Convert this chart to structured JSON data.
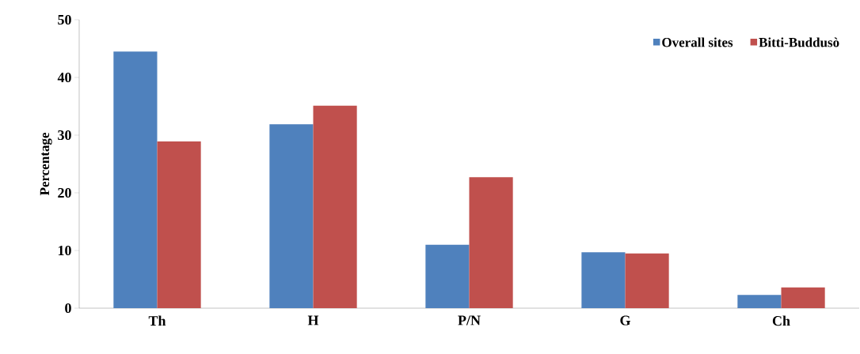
{
  "chart_data": {
    "type": "bar",
    "ylabel": "Percentage",
    "categories": [
      "Th",
      "H",
      "P/N",
      "G",
      "Ch"
    ],
    "series": [
      {
        "name": "Overall sites",
        "color": "#4f81bd",
        "values": [
          44.5,
          31.9,
          11.0,
          9.7,
          2.3
        ]
      },
      {
        "name": "Bitti-Buddusò",
        "color": "#c0504d",
        "values": [
          28.9,
          35.1,
          22.7,
          9.5,
          3.6
        ]
      }
    ],
    "ylim": [
      0,
      50
    ],
    "yticks": [
      0,
      10,
      20,
      30,
      40,
      50
    ],
    "legend": "top right"
  }
}
